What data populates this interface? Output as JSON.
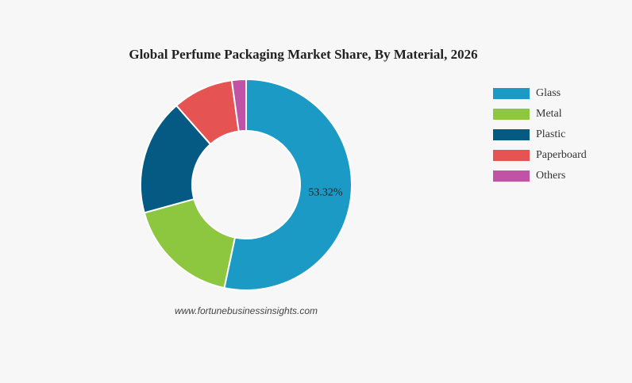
{
  "chart_data": {
    "type": "donut",
    "title": "Global Perfume Packaging Market Share, By Material, 2026",
    "categories": [
      "Glass",
      "Metal",
      "Plastic",
      "Paperboard",
      "Others"
    ],
    "values": [
      53.32,
      17.4,
      17.8,
      9.3,
      2.18
    ],
    "value_labels": [
      "53.32%",
      null,
      null,
      null,
      null
    ],
    "colors": [
      "#1b9ac5",
      "#8dc63f",
      "#045a82",
      "#e65353",
      "#c153a6"
    ],
    "legend": "right",
    "source": "www.fortunebusinessinsights.com"
  }
}
